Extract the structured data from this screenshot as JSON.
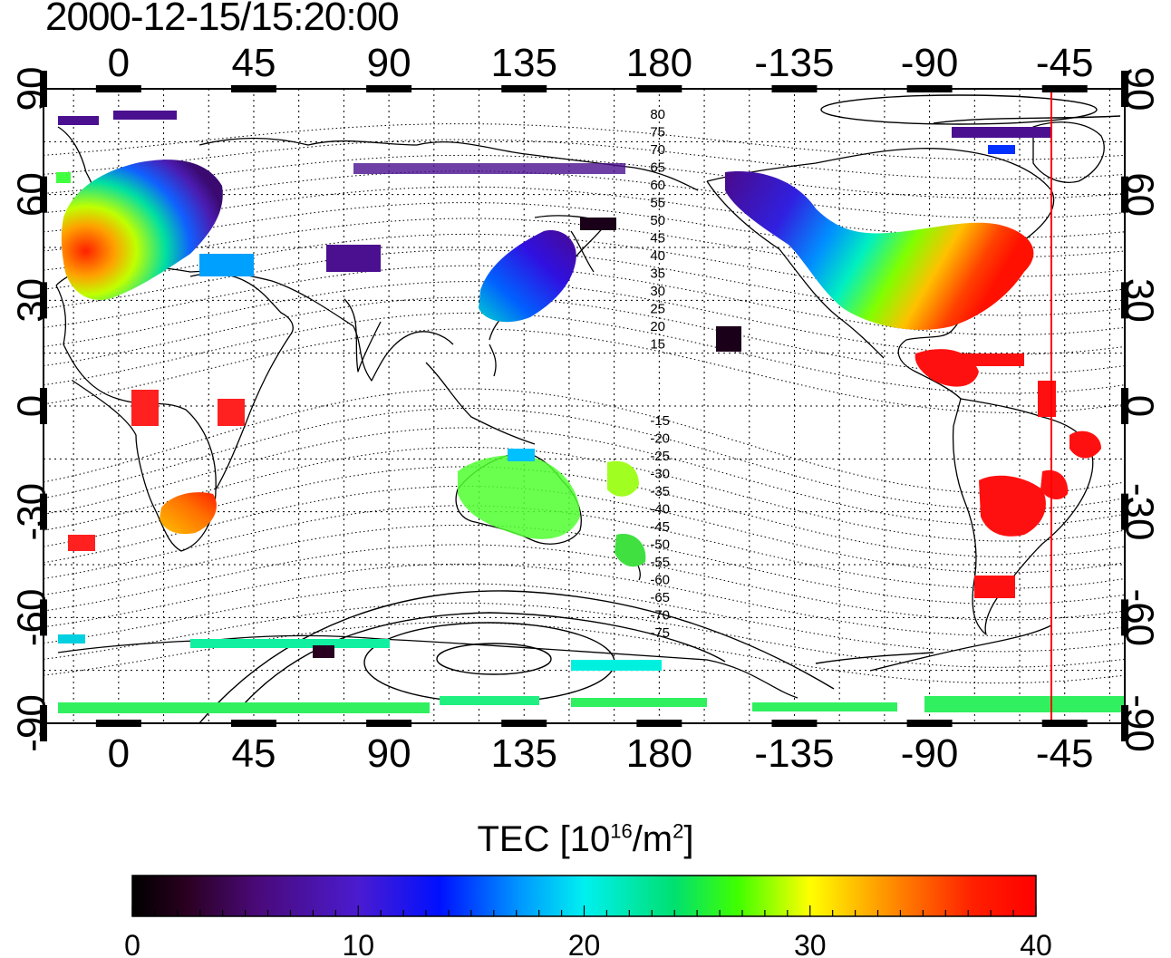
{
  "title": "2000-12-15/15:20:00",
  "map": {
    "projection": "cylindrical",
    "lon_range": [
      -25,
      335
    ],
    "lat_range": [
      -90,
      90
    ],
    "top_lon_ticks": [
      "0",
      "45",
      "90",
      "135",
      "180",
      "-135",
      "-90",
      "-45"
    ],
    "bottom_lon_ticks": [
      "0",
      "45",
      "90",
      "135",
      "180",
      "-135",
      "-90",
      "-45"
    ],
    "lat_ticks": [
      "90",
      "60",
      "30",
      "0",
      "-30",
      "-60",
      "-90"
    ],
    "grid": true,
    "terminator_lon": -50,
    "terminator_color": "#ff0000",
    "contour_labels_north": [
      "80",
      "75",
      "70",
      "65",
      "60",
      "55",
      "50",
      "45",
      "40",
      "35",
      "30",
      "25",
      "20",
      "15"
    ],
    "contour_labels_south": [
      "-15",
      "-20",
      "-25",
      "-30",
      "-35",
      "-40",
      "-45",
      "-50",
      "-55",
      "-60",
      "-65",
      "-70",
      "-75"
    ]
  },
  "colorbar": {
    "title_main": "TEC  [10",
    "title_exp": "16",
    "title_unit": "/m",
    "title_unit_exp": "2",
    "title_end": "]",
    "min": 0,
    "max": 40,
    "ticks": [
      "0",
      "10",
      "20",
      "30",
      "40"
    ],
    "colormap": "jet-like: black → purple → blue → cyan → green → yellow → orange → red"
  },
  "chart_data": {
    "type": "heatmap",
    "title": "2000-12-15/15:20:00",
    "xlabel": "",
    "ylabel": "",
    "value_unit": "TEC [10^16/m^2]",
    "vmin": 0,
    "vmax": 40,
    "regions": [
      {
        "lon": [
          -20,
          40
        ],
        "lat": [
          30,
          80
        ],
        "tec_range": [
          5,
          38
        ]
      },
      {
        "lon": [
          110,
          150
        ],
        "lat": [
          20,
          55
        ],
        "tec_range": [
          7,
          16
        ]
      },
      {
        "lon": [
          -160,
          -60
        ],
        "lat": [
          25,
          70
        ],
        "tec_range": [
          5,
          38
        ]
      },
      {
        "lon": [
          -110,
          -40
        ],
        "lat": [
          -55,
          25
        ],
        "tec_range": [
          36,
          40
        ]
      },
      {
        "lon": [
          15,
          35
        ],
        "lat": [
          -35,
          -25
        ],
        "tec_range": [
          30,
          38
        ]
      },
      {
        "lon": [
          115,
          175
        ],
        "lat": [
          -50,
          -15
        ],
        "tec_range": [
          15,
          28
        ]
      },
      {
        "lon": [
          -25,
          335
        ],
        "lat": [
          -90,
          -70
        ],
        "tec_range": [
          10,
          22
        ]
      }
    ]
  }
}
